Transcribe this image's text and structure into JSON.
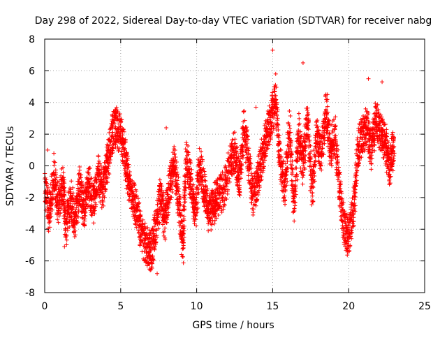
{
  "chart_data": {
    "type": "scatter",
    "title": "Day 298 of 2022, Sidereal Day-to-day VTEC variation (SDTVAR) for receiver nabg",
    "xlabel": "GPS time / hours",
    "ylabel": "SDTVAR / TECUs",
    "xlim": [
      0,
      25
    ],
    "ylim": [
      -8,
      8
    ],
    "x_ticks": [
      0,
      5,
      10,
      15,
      20,
      25
    ],
    "y_ticks": [
      -8,
      -6,
      -4,
      -2,
      0,
      2,
      4,
      6,
      8
    ],
    "grid": true,
    "marker": "+",
    "series_color": "#ff0000",
    "series": [
      {
        "name": "SDTVAR",
        "trace": [
          [
            0.0,
            -1.5
          ],
          [
            0.3,
            -3.0
          ],
          [
            0.6,
            -0.5
          ],
          [
            0.9,
            -2.5
          ],
          [
            1.2,
            -1.0
          ],
          [
            1.4,
            -4.0
          ],
          [
            1.7,
            -2.0
          ],
          [
            2.0,
            -3.5
          ],
          [
            2.3,
            -1.2
          ],
          [
            2.6,
            -2.8
          ],
          [
            2.9,
            -1.0
          ],
          [
            3.2,
            -2.5
          ],
          [
            3.5,
            -0.5
          ],
          [
            3.8,
            -1.5
          ],
          [
            4.1,
            0.0
          ],
          [
            4.4,
            2.0
          ],
          [
            4.7,
            2.5
          ],
          [
            5.0,
            2.0
          ],
          [
            5.3,
            0.5
          ],
          [
            5.5,
            -1.0
          ],
          [
            5.8,
            -2.0
          ],
          [
            6.1,
            -3.0
          ],
          [
            6.4,
            -4.5
          ],
          [
            6.7,
            -5.0
          ],
          [
            7.0,
            -5.5
          ],
          [
            7.3,
            -4.0
          ],
          [
            7.6,
            -2.0
          ],
          [
            7.9,
            -3.5
          ],
          [
            8.2,
            -1.5
          ],
          [
            8.5,
            0.5
          ],
          [
            8.8,
            -2.0
          ],
          [
            9.1,
            -5.0
          ],
          [
            9.3,
            0.5
          ],
          [
            9.6,
            -1.0
          ],
          [
            9.9,
            -3.0
          ],
          [
            10.2,
            0.0
          ],
          [
            10.5,
            -1.5
          ],
          [
            10.8,
            -3.0
          ],
          [
            11.1,
            -2.5
          ],
          [
            11.4,
            -2.0
          ],
          [
            11.8,
            -1.5
          ],
          [
            12.2,
            0.0
          ],
          [
            12.5,
            1.0
          ],
          [
            12.8,
            -1.0
          ],
          [
            13.1,
            2.5
          ],
          [
            13.4,
            0.5
          ],
          [
            13.7,
            -2.0
          ],
          [
            14.0,
            -1.0
          ],
          [
            14.3,
            0.5
          ],
          [
            14.6,
            2.0
          ],
          [
            14.9,
            3.0
          ],
          [
            15.2,
            4.0
          ],
          [
            15.5,
            0.0
          ],
          [
            15.8,
            -1.5
          ],
          [
            16.1,
            2.5
          ],
          [
            16.4,
            -2.5
          ],
          [
            16.7,
            2.0
          ],
          [
            17.0,
            0.0
          ],
          [
            17.3,
            3.0
          ],
          [
            17.6,
            -2.0
          ],
          [
            17.9,
            2.0
          ],
          [
            18.2,
            0.5
          ],
          [
            18.5,
            3.5
          ],
          [
            18.8,
            1.0
          ],
          [
            19.1,
            2.0
          ],
          [
            19.4,
            -1.5
          ],
          [
            19.7,
            -4.0
          ],
          [
            20.0,
            -4.5
          ],
          [
            20.3,
            -3.0
          ],
          [
            20.6,
            1.0
          ],
          [
            20.9,
            2.0
          ],
          [
            21.2,
            2.5
          ],
          [
            21.5,
            1.0
          ],
          [
            21.8,
            3.0
          ],
          [
            22.1,
            2.0
          ],
          [
            22.4,
            1.5
          ],
          [
            22.7,
            0.0
          ],
          [
            23.0,
            1.5
          ]
        ],
        "outliers": [
          [
            15.0,
            7.3
          ],
          [
            15.2,
            5.8
          ],
          [
            17.0,
            6.5
          ],
          [
            15.1,
            5.0
          ],
          [
            21.3,
            5.5
          ],
          [
            4.9,
            3.2
          ],
          [
            13.9,
            3.7
          ],
          [
            7.4,
            -6.8
          ],
          [
            6.9,
            -6.2
          ],
          [
            9.0,
            -5.6
          ],
          [
            19.9,
            -5.2
          ],
          [
            1.3,
            -5.1
          ],
          [
            8.0,
            2.4
          ],
          [
            18.6,
            4.5
          ],
          [
            0.2,
            1.0
          ],
          [
            22.2,
            5.3
          ]
        ]
      }
    ]
  }
}
